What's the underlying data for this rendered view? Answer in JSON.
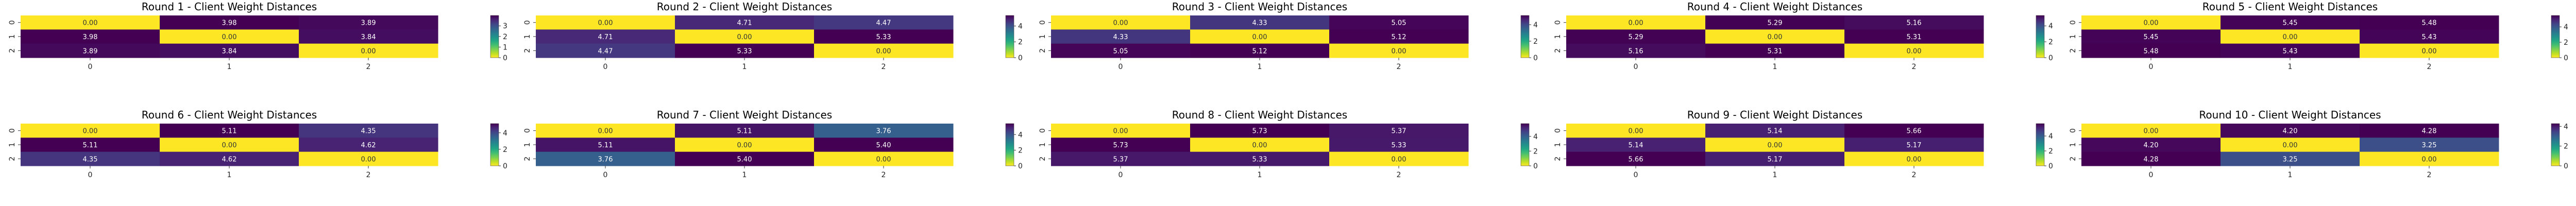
{
  "figure": {
    "background": "#ffffff",
    "colormap": "viridis"
  },
  "chart_data": [
    {
      "type": "heatmap",
      "title": "Round 1 - Client Weight Distances",
      "x_ticks": [
        "0",
        "1",
        "2"
      ],
      "y_ticks": [
        "0",
        "1",
        "2"
      ],
      "values": [
        [
          0.0,
          3.98,
          3.89
        ],
        [
          3.98,
          0.0,
          3.84
        ],
        [
          3.89,
          3.84,
          0.0
        ]
      ],
      "labels": [
        [
          "0.00",
          "3.98",
          "3.89"
        ],
        [
          "3.98",
          "0.00",
          "3.84"
        ],
        [
          "3.89",
          "3.84",
          "0.00"
        ]
      ],
      "vmin": 0,
      "vmax": 3.98,
      "colorbar_ticks": [
        0,
        1,
        2,
        3
      ],
      "colorbar_tick_labels": [
        "0",
        "1",
        "2",
        "3"
      ]
    },
    {
      "type": "heatmap",
      "title": "Round 2 - Client Weight Distances",
      "x_ticks": [
        "0",
        "1",
        "2"
      ],
      "y_ticks": [
        "0",
        "1",
        "2"
      ],
      "values": [
        [
          0.0,
          4.71,
          4.47
        ],
        [
          4.71,
          0.0,
          5.33
        ],
        [
          4.47,
          5.33,
          0.0
        ]
      ],
      "labels": [
        [
          "0.00",
          "4.71",
          "4.47"
        ],
        [
          "4.71",
          "0.00",
          "5.33"
        ],
        [
          "4.47",
          "5.33",
          "0.00"
        ]
      ],
      "vmin": 0,
      "vmax": 5.33,
      "colorbar_ticks": [
        0,
        2,
        4
      ],
      "colorbar_tick_labels": [
        "0",
        "2",
        "4"
      ]
    },
    {
      "type": "heatmap",
      "title": "Round 3 - Client Weight Distances",
      "x_ticks": [
        "0",
        "1",
        "2"
      ],
      "y_ticks": [
        "0",
        "1",
        "2"
      ],
      "values": [
        [
          0.0,
          4.33,
          5.05
        ],
        [
          4.33,
          0.0,
          5.12
        ],
        [
          5.05,
          5.12,
          0.0
        ]
      ],
      "labels": [
        [
          "0.00",
          "4.33",
          "5.05"
        ],
        [
          "4.33",
          "0.00",
          "5.12"
        ],
        [
          "5.05",
          "5.12",
          "0.00"
        ]
      ],
      "vmin": 0,
      "vmax": 5.12,
      "colorbar_ticks": [
        0,
        2,
        4
      ],
      "colorbar_tick_labels": [
        "0",
        "2",
        "4"
      ]
    },
    {
      "type": "heatmap",
      "title": "Round 4 - Client Weight Distances",
      "x_ticks": [
        "0",
        "1",
        "2"
      ],
      "y_ticks": [
        "0",
        "1",
        "2"
      ],
      "values": [
        [
          0.0,
          5.29,
          5.16
        ],
        [
          5.29,
          0.0,
          5.31
        ],
        [
          5.16,
          5.31,
          0.0
        ]
      ],
      "labels": [
        [
          "0.00",
          "5.29",
          "5.16"
        ],
        [
          "5.29",
          "0.00",
          "5.31"
        ],
        [
          "5.16",
          "5.31",
          "0.00"
        ]
      ],
      "vmin": 0,
      "vmax": 5.31,
      "colorbar_ticks": [
        0,
        2,
        4
      ],
      "colorbar_tick_labels": [
        "0",
        "2",
        "4"
      ]
    },
    {
      "type": "heatmap",
      "title": "Round 5 - Client Weight Distances",
      "x_ticks": [
        "0",
        "1",
        "2"
      ],
      "y_ticks": [
        "0",
        "1",
        "2"
      ],
      "values": [
        [
          0.0,
          5.45,
          5.48
        ],
        [
          5.45,
          0.0,
          5.43
        ],
        [
          5.48,
          5.43,
          0.0
        ]
      ],
      "labels": [
        [
          "0.00",
          "5.45",
          "5.48"
        ],
        [
          "5.45",
          "0.00",
          "5.43"
        ],
        [
          "5.48",
          "5.43",
          "0.00"
        ]
      ],
      "vmin": 0,
      "vmax": 5.48,
      "colorbar_ticks": [
        0,
        2,
        4
      ],
      "colorbar_tick_labels": [
        "0",
        "2",
        "4"
      ]
    },
    {
      "type": "heatmap",
      "title": "Round 6 - Client Weight Distances",
      "x_ticks": [
        "0",
        "1",
        "2"
      ],
      "y_ticks": [
        "0",
        "1",
        "2"
      ],
      "values": [
        [
          0.0,
          5.11,
          4.35
        ],
        [
          5.11,
          0.0,
          4.62
        ],
        [
          4.35,
          4.62,
          0.0
        ]
      ],
      "labels": [
        [
          "0.00",
          "5.11",
          "4.35"
        ],
        [
          "5.11",
          "0.00",
          "4.62"
        ],
        [
          "4.35",
          "4.62",
          "0.00"
        ]
      ],
      "vmin": 0,
      "vmax": 5.11,
      "colorbar_ticks": [
        0,
        2,
        4
      ],
      "colorbar_tick_labels": [
        "0",
        "2",
        "4"
      ]
    },
    {
      "type": "heatmap",
      "title": "Round 7 - Client Weight Distances",
      "x_ticks": [
        "0",
        "1",
        "2"
      ],
      "y_ticks": [
        "0",
        "1",
        "2"
      ],
      "values": [
        [
          0.0,
          5.11,
          3.76
        ],
        [
          5.11,
          0.0,
          5.4
        ],
        [
          3.76,
          5.4,
          0.0
        ]
      ],
      "labels": [
        [
          "0.00",
          "5.11",
          "3.76"
        ],
        [
          "5.11",
          "0.00",
          "5.40"
        ],
        [
          "3.76",
          "5.40",
          "0.00"
        ]
      ],
      "vmin": 0,
      "vmax": 5.4,
      "colorbar_ticks": [
        0,
        2,
        4
      ],
      "colorbar_tick_labels": [
        "0",
        "2",
        "4"
      ]
    },
    {
      "type": "heatmap",
      "title": "Round 8 - Client Weight Distances",
      "x_ticks": [
        "0",
        "1",
        "2"
      ],
      "y_ticks": [
        "0",
        "1",
        "2"
      ],
      "values": [
        [
          0.0,
          5.73,
          5.37
        ],
        [
          5.73,
          0.0,
          5.33
        ],
        [
          5.37,
          5.33,
          0.0
        ]
      ],
      "labels": [
        [
          "0.00",
          "5.73",
          "5.37"
        ],
        [
          "5.73",
          "0.00",
          "5.33"
        ],
        [
          "5.37",
          "5.33",
          "0.00"
        ]
      ],
      "vmin": 0,
      "vmax": 5.73,
      "colorbar_ticks": [
        0,
        2,
        4
      ],
      "colorbar_tick_labels": [
        "0",
        "2",
        "4"
      ]
    },
    {
      "type": "heatmap",
      "title": "Round 9 - Client Weight Distances",
      "x_ticks": [
        "0",
        "1",
        "2"
      ],
      "y_ticks": [
        "0",
        "1",
        "2"
      ],
      "values": [
        [
          0.0,
          5.14,
          5.66
        ],
        [
          5.14,
          0.0,
          5.17
        ],
        [
          5.66,
          5.17,
          0.0
        ]
      ],
      "labels": [
        [
          "0.00",
          "5.14",
          "5.66"
        ],
        [
          "5.14",
          "0.00",
          "5.17"
        ],
        [
          "5.66",
          "5.17",
          "0.00"
        ]
      ],
      "vmin": 0,
      "vmax": 5.66,
      "colorbar_ticks": [
        0,
        2,
        4
      ],
      "colorbar_tick_labels": [
        "0",
        "2",
        "4"
      ]
    },
    {
      "type": "heatmap",
      "title": "Round 10 - Client Weight Distances",
      "x_ticks": [
        "0",
        "1",
        "2"
      ],
      "y_ticks": [
        "0",
        "1",
        "2"
      ],
      "values": [
        [
          0.0,
          4.2,
          4.28
        ],
        [
          4.2,
          0.0,
          3.25
        ],
        [
          4.28,
          3.25,
          0.0
        ]
      ],
      "labels": [
        [
          "0.00",
          "4.20",
          "4.28"
        ],
        [
          "4.20",
          "0.00",
          "3.25"
        ],
        [
          "4.28",
          "3.25",
          "0.00"
        ]
      ],
      "vmin": 0,
      "vmax": 4.28,
      "colorbar_ticks": [
        0,
        2,
        4
      ],
      "colorbar_tick_labels": [
        "0",
        "2",
        "4"
      ]
    }
  ]
}
